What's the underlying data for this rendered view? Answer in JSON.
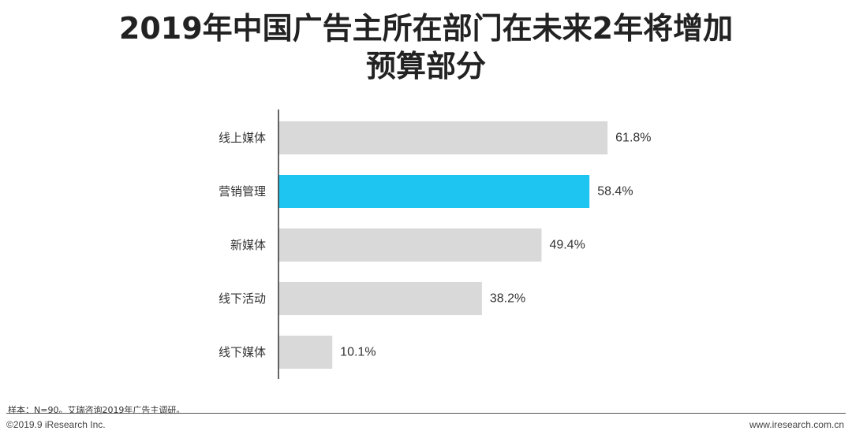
{
  "title": {
    "line1": "2019年中国广告主所在部门在未来2年将增加",
    "line2": "预算部分"
  },
  "chart_data": {
    "type": "bar",
    "orientation": "horizontal",
    "categories": [
      "线上媒体",
      "营销管理",
      "新媒体",
      "线下活动",
      "线下媒体"
    ],
    "values": [
      61.8,
      58.4,
      49.4,
      38.2,
      10.1
    ],
    "value_labels": [
      "61.8%",
      "58.4%",
      "49.4%",
      "38.2%",
      "10.1%"
    ],
    "highlight": "营销管理",
    "colors": {
      "default": "#d9d9d9",
      "highlight": "#1ec5f0",
      "axis": "#333333"
    },
    "xlim": [
      0,
      100
    ],
    "grid": false
  },
  "footer": {
    "note": "样本：N=90。艾瑞咨询2019年广告主调研。",
    "copyright": "©2019.9 iResearch Inc.",
    "website": "www.iresearch.com.cn"
  }
}
